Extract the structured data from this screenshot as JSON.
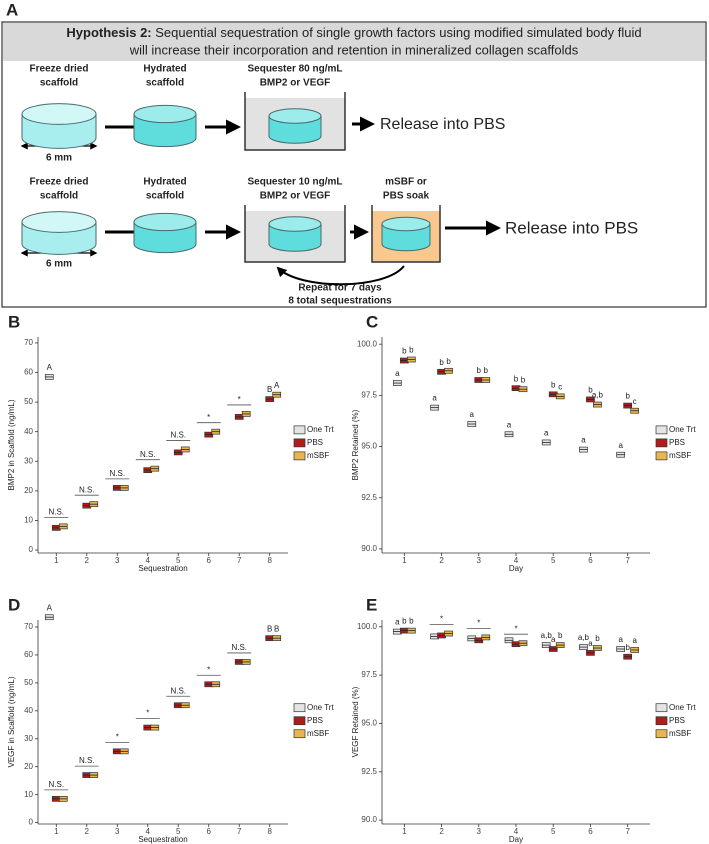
{
  "diagram": {
    "panel": "A",
    "title_bold": "Hypothesis 2:",
    "title_rest": "Sequential sequestration of single growth factors using modified simulated body fluid",
    "title_line2": "will increase their incorporation and retention in mineralized collagen scaffolds",
    "row1": {
      "freeze": [
        "Freeze dried",
        "scaffold"
      ],
      "hydrated": [
        "Hydrated",
        "scaffold"
      ],
      "sequester": [
        "Sequester 80 ng/mL",
        "BMP2 or VEGF"
      ],
      "size": "6 mm",
      "release": "Release into PBS"
    },
    "row2": {
      "freeze": [
        "Freeze dried",
        "scaffold"
      ],
      "hydrated": [
        "Hydrated",
        "scaffold"
      ],
      "sequester": [
        "Sequester 10 ng/mL",
        "BMP2 or VEGF"
      ],
      "soak": [
        "mSBF or",
        "PBS soak"
      ],
      "size": "6 mm",
      "release": "Release into PBS",
      "repeat": [
        "Repeat for 7 days",
        "8 total sequestrations"
      ]
    }
  },
  "chart_data": [
    {
      "panel": "B",
      "type": "box",
      "x_label": "Sequestration",
      "y_label": "BMP2 in Scaffold (ng/mL)",
      "legend": "right",
      "categories": [
        "1",
        "2",
        "3",
        "4",
        "5",
        "6",
        "7",
        "8"
      ],
      "ylim": [
        -1,
        72
      ],
      "yticks": [
        0,
        10,
        20,
        30,
        40,
        50,
        60,
        70
      ],
      "series": [
        {
          "name": "One Trt",
          "color": "#e4e4e4",
          "values": [
            58.5,
            null,
            null,
            null,
            null,
            null,
            null,
            null
          ],
          "letters": [
            "A",
            null,
            null,
            null,
            null,
            null,
            null,
            null
          ]
        },
        {
          "name": "PBS",
          "color": "#b01c1c",
          "values": [
            7.5,
            15,
            21,
            27,
            33,
            39,
            45,
            51
          ],
          "letters": [
            null,
            null,
            null,
            null,
            null,
            null,
            null,
            "B"
          ]
        },
        {
          "name": "mSBF",
          "color": "#e8b64c",
          "values": [
            8,
            15.5,
            21,
            27.5,
            34,
            40,
            46,
            52.5
          ],
          "letters": [
            null,
            null,
            null,
            null,
            null,
            null,
            null,
            "A"
          ]
        }
      ],
      "comparisons": [
        "N.S.",
        "N.S.",
        "N.S.",
        "N.S.",
        "N.S.",
        "*",
        "*",
        null
      ]
    },
    {
      "panel": "C",
      "type": "box",
      "x_label": "Day",
      "y_label": "BMP2 Retained (%)",
      "legend": "right",
      "categories": [
        "1",
        "2",
        "3",
        "4",
        "5",
        "6",
        "7"
      ],
      "ylim": [
        89.8,
        100.35
      ],
      "yticks": [
        {
          "value": 90,
          "label": "90.0"
        },
        {
          "value": 92.5,
          "label": "92.5"
        },
        {
          "value": 95,
          "label": "95.0"
        },
        {
          "value": 97.5,
          "label": "97.5"
        },
        {
          "value": 100,
          "label": "100.0"
        }
      ],
      "series": [
        {
          "name": "One Trt",
          "color": "#e4e4e4",
          "values": [
            98.1,
            96.9,
            96.1,
            95.6,
            95.2,
            94.85,
            94.6
          ],
          "letters": [
            "a",
            "a",
            "a",
            "a",
            "a",
            "a",
            "a"
          ]
        },
        {
          "name": "PBS",
          "color": "#b01c1c",
          "values": [
            99.2,
            98.65,
            98.25,
            97.85,
            97.55,
            97.3,
            97.0
          ],
          "letters": [
            "b",
            "b",
            "b",
            "b",
            "b",
            "b",
            "b"
          ]
        },
        {
          "name": "mSBF",
          "color": "#e8b64c",
          "values": [
            99.25,
            98.7,
            98.25,
            97.8,
            97.45,
            97.05,
            96.75
          ],
          "letters": [
            "b",
            "b",
            "b",
            "b",
            "c",
            "a,b",
            "c"
          ]
        }
      ],
      "comparisons": [
        null,
        null,
        null,
        null,
        null,
        null,
        null
      ]
    },
    {
      "panel": "D",
      "type": "box",
      "x_label": "Sequestration",
      "y_label": "VEGF in Scaffold (ng/mL)",
      "legend": "right",
      "categories": [
        "1",
        "2",
        "3",
        "4",
        "5",
        "6",
        "7",
        "8"
      ],
      "ylim": [
        -0.5,
        72.5
      ],
      "yticks": [
        0,
        10,
        20,
        30,
        40,
        50,
        60,
        70
      ],
      "series": [
        {
          "name": "One Trt",
          "color": "#e4e4e4",
          "values": [
            73.5,
            null,
            null,
            null,
            null,
            null,
            null,
            null
          ],
          "letters": [
            "A",
            null,
            null,
            null,
            null,
            null,
            null,
            null
          ]
        },
        {
          "name": "PBS",
          "color": "#b01c1c",
          "values": [
            8.5,
            17,
            25.5,
            34,
            42,
            49.5,
            57.5,
            66
          ],
          "letters": [
            null,
            null,
            null,
            null,
            null,
            null,
            null,
            "B"
          ]
        },
        {
          "name": "mSBF",
          "color": "#e8b64c",
          "values": [
            8.5,
            17,
            25.5,
            34,
            42,
            49.5,
            57.5,
            66
          ],
          "letters": [
            null,
            null,
            null,
            null,
            null,
            null,
            null,
            "B"
          ]
        }
      ],
      "comparisons": [
        "N.S.",
        "N.S.",
        "*",
        "*",
        "N.S.",
        "*",
        "N.S.",
        null
      ]
    },
    {
      "panel": "E",
      "type": "box",
      "x_label": "Day",
      "y_label": "VEGF Retained (%)",
      "legend": "right",
      "categories": [
        "1",
        "2",
        "3",
        "4",
        "5",
        "6",
        "7"
      ],
      "ylim": [
        89.8,
        100.35
      ],
      "yticks": [
        {
          "value": 90,
          "label": "90.0"
        },
        {
          "value": 92.5,
          "label": "92.5"
        },
        {
          "value": 95,
          "label": "95.0"
        },
        {
          "value": 97.5,
          "label": "97.5"
        },
        {
          "value": 100,
          "label": "100.0"
        }
      ],
      "series": [
        {
          "name": "One Trt",
          "color": "#e4e4e4",
          "values": [
            99.75,
            99.5,
            99.4,
            99.3,
            99.05,
            98.95,
            98.85
          ],
          "letters": [
            "a",
            null,
            null,
            null,
            "a,b",
            "a,b",
            "a"
          ]
        },
        {
          "name": "PBS",
          "color": "#b01c1c",
          "values": [
            99.8,
            99.55,
            99.3,
            99.1,
            98.85,
            98.65,
            98.45
          ],
          "letters": [
            "b",
            null,
            null,
            null,
            "a",
            "a",
            "b"
          ]
        },
        {
          "name": "mSBF",
          "color": "#e8b64c",
          "values": [
            99.8,
            99.65,
            99.45,
            99.15,
            99.05,
            98.9,
            98.8
          ],
          "letters": [
            "b",
            null,
            null,
            null,
            "b",
            "b",
            "a"
          ]
        }
      ],
      "comparisons": [
        null,
        "*",
        "*",
        "*",
        null,
        null,
        null
      ]
    }
  ]
}
